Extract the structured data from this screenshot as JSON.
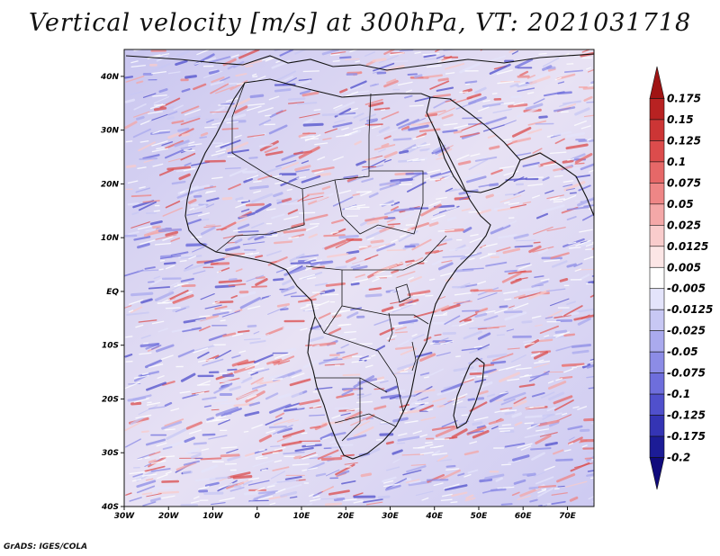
{
  "title": "Vertical velocity [m/s] at 300hPa, VT: 2021031718",
  "credit": "GrADS: IGES/COLA",
  "map": {
    "lon_range": [
      -30,
      76
    ],
    "lat_range": [
      -40,
      45
    ],
    "lat_ticks": [
      "40N",
      "30N",
      "20N",
      "10N",
      "EQ",
      "10S",
      "20S",
      "30S",
      "40S"
    ],
    "lat_values": [
      40,
      30,
      20,
      10,
      0,
      -10,
      -20,
      -30,
      -40
    ],
    "lon_ticks": [
      "30W",
      "20W",
      "10W",
      "0",
      "10E",
      "20E",
      "30E",
      "40E",
      "50E",
      "60E",
      "70E"
    ],
    "lon_values": [
      -30,
      -20,
      -10,
      0,
      10,
      20,
      30,
      40,
      50,
      60,
      70
    ]
  },
  "colorbar": {
    "labels": [
      "0.175",
      "0.15",
      "0.125",
      "0.1",
      "0.075",
      "0.05",
      "0.025",
      "0.0125",
      "0.005",
      "-0.005",
      "-0.0125",
      "-0.025",
      "-0.05",
      "-0.075",
      "-0.1",
      "-0.125",
      "-0.175",
      "-0.2"
    ],
    "colors": [
      "#a01414",
      "#b82222",
      "#cc3535",
      "#dc4c4c",
      "#e66868",
      "#ee8686",
      "#f4a8a8",
      "#f9cccc",
      "#fce6e6",
      "#ffffff",
      "#e4e4fb",
      "#c8c8f4",
      "#aaaaee",
      "#8c8ce6",
      "#6e6edc",
      "#5050cc",
      "#3434b4",
      "#1c1c96",
      "#100a7c"
    ]
  }
}
